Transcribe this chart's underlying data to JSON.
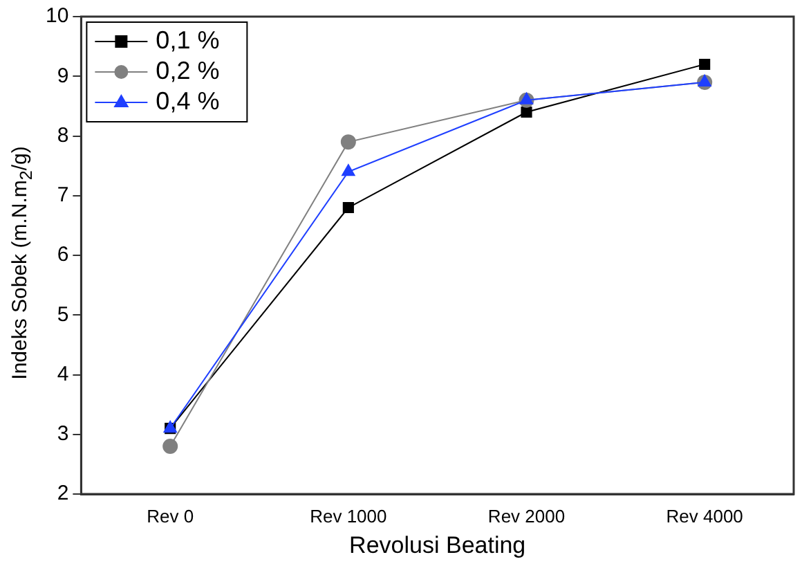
{
  "chart_data": {
    "type": "line",
    "xlabel": "Revolusi Beating",
    "ylabel": "Indeks Sobek (m.N.m$_{2}$/g)",
    "categories": [
      "Rev 0",
      "Rev 1000",
      "Rev 2000",
      "Rev 4000"
    ],
    "series": [
      {
        "name": "0,1 %",
        "color": "#000000",
        "marker": "square",
        "values": [
          3.1,
          6.8,
          8.4,
          9.2
        ]
      },
      {
        "name": "0,2 %",
        "color": "#808080",
        "marker": "circle",
        "values": [
          2.8,
          7.9,
          8.6,
          8.9
        ]
      },
      {
        "name": "0,4 %",
        "color": "#1f3fff",
        "marker": "triangle",
        "values": [
          3.1,
          7.4,
          8.6,
          8.9
        ]
      }
    ],
    "ylim": [
      2,
      10
    ],
    "yticks": [
      2,
      3,
      4,
      5,
      6,
      7,
      8,
      9,
      10
    ],
    "grid": false,
    "legend": "top left",
    "line_style": "solid"
  }
}
